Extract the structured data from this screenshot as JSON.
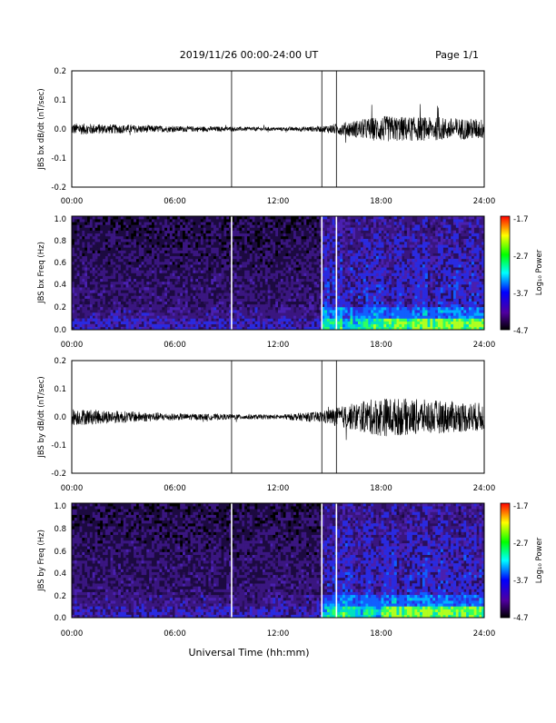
{
  "header": {
    "title": "2019/11/26  00:00-24:00 UT",
    "page": "Page 1/1"
  },
  "xaxis": {
    "label": "Universal Time (hh:mm)",
    "ticks": [
      "00:00",
      "06:00",
      "12:00",
      "18:00",
      "24:00"
    ]
  },
  "colorbar": {
    "label": "Log₁₀ Power",
    "ticks": [
      "-1.7",
      "-2.7",
      "-3.7",
      "-4.7"
    ],
    "colors": [
      "#ff0000",
      "#ffff00",
      "#00ff00",
      "#00ffff",
      "#0000ff",
      "#5000a0",
      "#000000"
    ]
  },
  "chart_data": [
    {
      "type": "line",
      "ylabel": "JBS bx dB/dt (nT/sec)",
      "xlim": [
        0,
        24
      ],
      "ylim": [
        -0.2,
        0.2
      ],
      "yticks": [
        "0.2",
        "0.1",
        "0.0",
        "-0.1",
        "-0.2"
      ],
      "data_gaps_hours": [
        9.3,
        14.55,
        15.4
      ],
      "amplitude_envelope": {
        "x": [
          0,
          6,
          12,
          14.5,
          16.5,
          18,
          21,
          24
        ],
        "y": [
          0.02,
          0.01,
          0.006,
          0.01,
          0.03,
          0.045,
          0.04,
          0.035
        ]
      }
    },
    {
      "type": "heatmap",
      "ylabel": "JBS bx Freq (Hz)",
      "xlim": [
        0,
        24
      ],
      "ylim": [
        0,
        1.0
      ],
      "yticks": [
        "1.0",
        "0.8",
        "0.6",
        "0.4",
        "0.2",
        "0.0"
      ],
      "zlim": [
        -4.7,
        -1.7
      ],
      "data_gaps_hours": [
        9.3,
        14.55,
        15.4
      ]
    },
    {
      "type": "line",
      "ylabel": "JBS by dB/dt (nT/sec)",
      "xlim": [
        0,
        24
      ],
      "ylim": [
        -0.2,
        0.2
      ],
      "yticks": [
        "0.2",
        "0.1",
        "0.0",
        "-0.1",
        "-0.2"
      ],
      "data_gaps_hours": [
        9.3,
        14.55,
        15.4
      ],
      "amplitude_envelope": {
        "x": [
          0,
          6,
          12,
          14.5,
          16.5,
          18,
          21,
          24
        ],
        "y": [
          0.03,
          0.012,
          0.008,
          0.02,
          0.05,
          0.07,
          0.06,
          0.05
        ]
      }
    },
    {
      "type": "heatmap",
      "ylabel": "JBS by Freq (Hz)",
      "xlim": [
        0,
        24
      ],
      "ylim": [
        0,
        1.0
      ],
      "yticks": [
        "1.0",
        "0.8",
        "0.6",
        "0.4",
        "0.2",
        "0.0"
      ],
      "zlim": [
        -4.7,
        -1.7
      ],
      "data_gaps_hours": [
        9.3,
        14.55,
        15.4
      ]
    }
  ]
}
